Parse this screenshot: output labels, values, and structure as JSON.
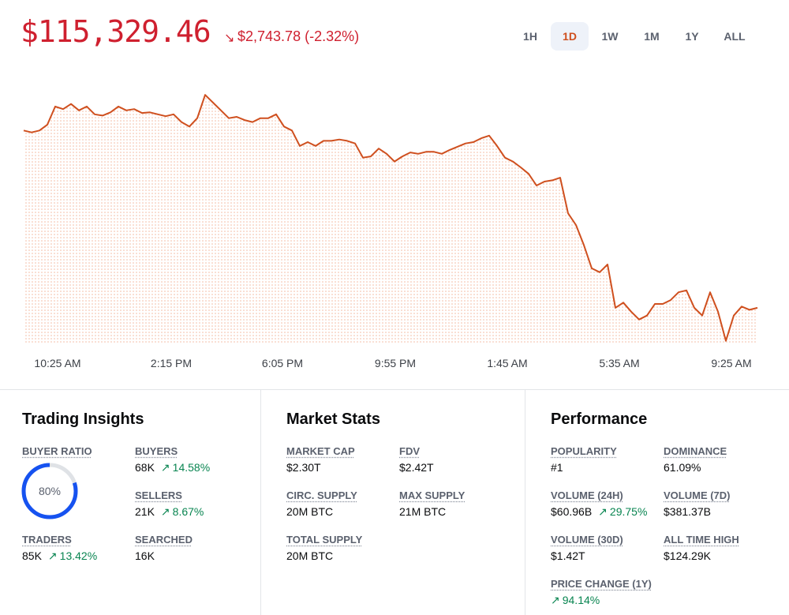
{
  "header": {
    "price": "$115,329.46",
    "change": "$2,743.78 (-2.32%)",
    "ranges": [
      "1H",
      "1D",
      "1W",
      "1M",
      "1Y",
      "ALL"
    ],
    "active_range": "1D"
  },
  "chart_data": {
    "type": "line",
    "color": "#cf4f1e",
    "values": [
      118070,
      118040,
      118070,
      118160,
      118440,
      118400,
      118480,
      118380,
      118440,
      118320,
      118300,
      118350,
      118440,
      118380,
      118400,
      118340,
      118350,
      118320,
      118290,
      118320,
      118200,
      118130,
      118260,
      118620,
      118500,
      118380,
      118260,
      118280,
      118230,
      118200,
      118260,
      118260,
      118320,
      118130,
      118070,
      117830,
      117890,
      117830,
      117910,
      117910,
      117930,
      117910,
      117870,
      117650,
      117670,
      117790,
      117710,
      117590,
      117670,
      117730,
      117710,
      117740,
      117740,
      117710,
      117770,
      117820,
      117870,
      117890,
      117950,
      117990,
      117830,
      117650,
      117590,
      117500,
      117400,
      117220,
      117280,
      117300,
      117340,
      116790,
      116610,
      116300,
      115940,
      115880,
      116000,
      115330,
      115410,
      115270,
      115150,
      115210,
      115390,
      115390,
      115450,
      115570,
      115600,
      115330,
      115210,
      115570,
      115270,
      114820,
      115210,
      115350,
      115300,
      115330
    ],
    "xlim": [
      0,
      93.7
    ],
    "xticks": [
      {
        "value": 4.3,
        "label": "10:25 AM"
      },
      {
        "value": 18.7,
        "label": "2:15 PM"
      },
      {
        "value": 32.8,
        "label": "6:05 PM"
      },
      {
        "value": 47.1,
        "label": "9:55 PM"
      },
      {
        "value": 61.3,
        "label": "1:45 AM"
      },
      {
        "value": 75.5,
        "label": "5:35 AM"
      },
      {
        "value": 89.7,
        "label": "9:25 AM"
      }
    ],
    "ylim": [
      114780,
      119110
    ]
  },
  "panels": [
    {
      "title": "Trading Insights",
      "items": [
        {
          "label": "BUYER RATIO",
          "value": 80,
          "value_label": "80%"
        },
        {
          "label": "BUYERS",
          "value": "68K",
          "change": "14.58%"
        },
        {
          "label": "SELLERS",
          "value": "21K",
          "change": "8.67%"
        },
        {
          "label": "TRADERS",
          "value": "85K",
          "change": "13.42%"
        },
        {
          "label": "SEARCHED",
          "value": "16K"
        }
      ]
    },
    {
      "title": "Market Stats",
      "items": [
        {
          "label": "MARKET CAP",
          "value": "$2.30T"
        },
        {
          "label": "FDV",
          "value": "$2.42T"
        },
        {
          "label": "CIRC. SUPPLY",
          "value": "20M BTC"
        },
        {
          "label": "MAX SUPPLY",
          "value": "21M BTC"
        },
        {
          "label": "TOTAL SUPPLY",
          "value": "20M BTC"
        }
      ]
    },
    {
      "title": "Performance",
      "items": [
        {
          "label": "POPULARITY",
          "value": "#1"
        },
        {
          "label": "DOMINANCE",
          "value": "61.09%"
        },
        {
          "label": "VOLUME (24H)",
          "value": "$60.96B",
          "change": "29.75%"
        },
        {
          "label": "VOLUME (7D)",
          "value": "$381.37B"
        },
        {
          "label": "VOLUME (30D)",
          "value": "$1.42T"
        },
        {
          "label": "ALL TIME HIGH",
          "value": "$124.29K"
        },
        {
          "label": "PRICE CHANGE (1Y)",
          "change": "94.14%"
        }
      ]
    }
  ]
}
